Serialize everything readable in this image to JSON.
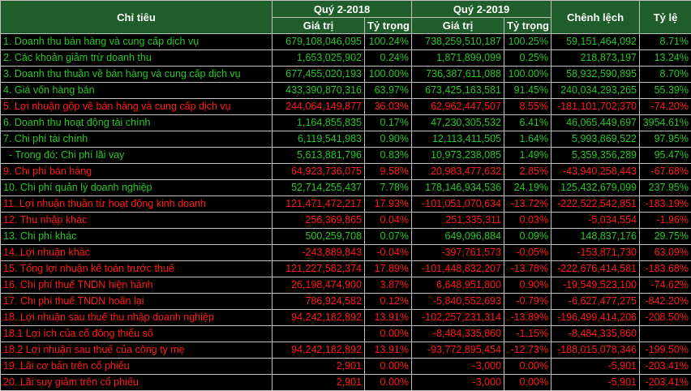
{
  "header": {
    "chi_tieu": "Chỉ tiêu",
    "q2018": "Quý 2-2018",
    "q2019": "Quý 2-2019",
    "gia_tri": "Giá trị",
    "ty_trong": "Tỷ trọng",
    "chenh_lech": "Chênh lệch",
    "ty_le": "Tỷ lệ"
  },
  "rows": [
    {
      "name": "1. Doanh thu bán hàng và cung cấp dịch vụ",
      "v2018": "679,108,046,095",
      "t2018": "100.24%",
      "v2019": "738,259,510,187",
      "t2019": "100.25%",
      "diff": "59,151,464,092",
      "ratio": "8.71%",
      "color": "g"
    },
    {
      "name": "2. Các khoản giảm trừ doanh thu",
      "v2018": "1,653,025,902",
      "t2018": "0.24%",
      "v2019": "1,871,899,099",
      "t2019": "0.25%",
      "diff": "218,873,197",
      "ratio": "13.24%",
      "color": "g"
    },
    {
      "name": "3. Doanh thu thuần về bán hàng và cung cấp dịch vụ",
      "v2018": "677,455,020,193",
      "t2018": "100.00%",
      "v2019": "736,387,611,088",
      "t2019": "100.00%",
      "diff": "58,932,590,895",
      "ratio": "8.70%",
      "color": "g"
    },
    {
      "name": "4. Giá vốn hàng bán",
      "v2018": "433,390,870,316",
      "t2018": "63.97%",
      "v2019": "673,425,163,581",
      "t2019": "91.45%",
      "diff": "240,034,293,265",
      "ratio": "55.39%",
      "color": "g"
    },
    {
      "name": "5. Lợi nhuận gộp về bán hàng và cung cấp dịch vụ",
      "v2018": "244,064,149,877",
      "t2018": "36.03%",
      "v2019": "62,962,447,507",
      "t2019": "8.55%",
      "diff": "-181,101,702,370",
      "ratio": "-74.20%",
      "color": "r"
    },
    {
      "name": "6. Doanh thu hoạt động tài chính",
      "v2018": "1,164,855,835",
      "t2018": "0.17%",
      "v2019": "47,230,305,532",
      "t2019": "6.41%",
      "diff": "46,065,449,697",
      "ratio": "3954.61%",
      "color": "g"
    },
    {
      "name": "7. Chi phí tài chính",
      "v2018": "6,119,541,983",
      "t2018": "0.90%",
      "v2019": "12,113,411,505",
      "t2019": "1.64%",
      "diff": "5,993,869,522",
      "ratio": "97.95%",
      "color": "g"
    },
    {
      "name": "  - Trong đó: Chi phí lãi vay",
      "v2018": "5,613,881,796",
      "t2018": "0.83%",
      "v2019": "10,973,238,085",
      "t2019": "1.49%",
      "diff": "5,359,356,289",
      "ratio": "95.47%",
      "color": "g"
    },
    {
      "name": "9. Chi phí bán hàng",
      "v2018": "64,923,736,075",
      "t2018": "9.58%",
      "v2019": "20,983,477,632",
      "t2019": "2.85%",
      "diff": "-43,940,258,443",
      "ratio": "-67.68%",
      "color": "r"
    },
    {
      "name": "10. Chi phí quản lý doanh nghiệp",
      "v2018": "52,714,255,437",
      "t2018": "7.78%",
      "v2019": "178,146,934,536",
      "t2019": "24.19%",
      "diff": "125,432,679,099",
      "ratio": "237.95%",
      "color": "g"
    },
    {
      "name": "11. Lợi nhuận thuần từ hoạt động kinh doanh",
      "v2018": "121,471,472,217",
      "t2018": "17.93%",
      "v2019": "-101,051,070,634",
      "t2019": "-13.72%",
      "diff": "-222,522,542,851",
      "ratio": "-183.19%",
      "color": "r"
    },
    {
      "name": "12. Thu nhập khác",
      "v2018": "256,369,865",
      "t2018": "0.04%",
      "v2019": "251,335,311",
      "t2019": "0.03%",
      "diff": "-5,034,554",
      "ratio": "-1.96%",
      "color": "r"
    },
    {
      "name": "13. Chi phí khác",
      "v2018": "500,259,708",
      "t2018": "0.07%",
      "v2019": "649,096,884",
      "t2019": "0.09%",
      "diff": "148,837,176",
      "ratio": "29.75%",
      "color": "g"
    },
    {
      "name": "14. Lợi nhuận khác",
      "v2018": "-243,889,843",
      "t2018": "-0.04%",
      "v2019": "-397,761,573",
      "t2019": "-0.05%",
      "diff": "-153,871,730",
      "ratio": "63.09%",
      "color": "r"
    },
    {
      "name": "15. Tổng lợi nhuận kế toán trước thuế",
      "v2018": "121,227,582,374",
      "t2018": "17.89%",
      "v2019": "-101,448,832,207",
      "t2019": "-13.78%",
      "diff": "-222,676,414,581",
      "ratio": "-183.68%",
      "color": "r"
    },
    {
      "name": "16. Chi phí thuế TNDN hiện hành",
      "v2018": "26,198,474,900",
      "t2018": "3.87%",
      "v2019": "6,648,951,800",
      "t2019": "0.90%",
      "diff": "-19,549,523,100",
      "ratio": "-74.62%",
      "color": "r"
    },
    {
      "name": "17. Chi phí thuế TNDN hoãn lại",
      "v2018": "786,924,582",
      "t2018": "0.12%",
      "v2019": "-5,840,552,693",
      "t2019": "-0.79%",
      "diff": "-6,627,477,275",
      "ratio": "-842.20%",
      "color": "r"
    },
    {
      "name": "18. Lợi nhuận sau thuế thu nhập doanh nghiệp",
      "v2018": "94,242,182,892",
      "t2018": "13.91%",
      "v2019": "-102,257,231,314",
      "t2019": "-13.89%",
      "diff": "-196,499,414,206",
      "ratio": "-208.50%",
      "color": "r"
    },
    {
      "name": "18.1 Lợi ích của cổ đông thiểu số",
      "v2018": "",
      "t2018": "0.00%",
      "v2019": "-8,484,335,860",
      "t2019": "-1.15%",
      "diff": "-8,484,335,860",
      "ratio": "",
      "color": "r"
    },
    {
      "name": "18.2 Lợi nhuận sau thuế của công ty mẹ",
      "v2018": "94,242,182,892",
      "t2018": "13.91%",
      "v2019": "-93,772,895,454",
      "t2019": "-12.73%",
      "diff": "-188,015,078,346",
      "ratio": "-199.50%",
      "color": "r"
    },
    {
      "name": "19. Lãi cơ bản trên cổ phiếu",
      "v2018": "2,901",
      "t2018": "0.00%",
      "v2019": "-3,000",
      "t2019": "0.00%",
      "diff": "-5,901",
      "ratio": "-203.41%",
      "color": "r"
    },
    {
      "name": "20. Lãi suy giảm trên cổ phiếu",
      "v2018": "2,901",
      "t2018": "0.00%",
      "v2019": "-3,000",
      "t2019": "0.00%",
      "diff": "-5,901",
      "ratio": "-203.41%",
      "color": "r"
    }
  ]
}
